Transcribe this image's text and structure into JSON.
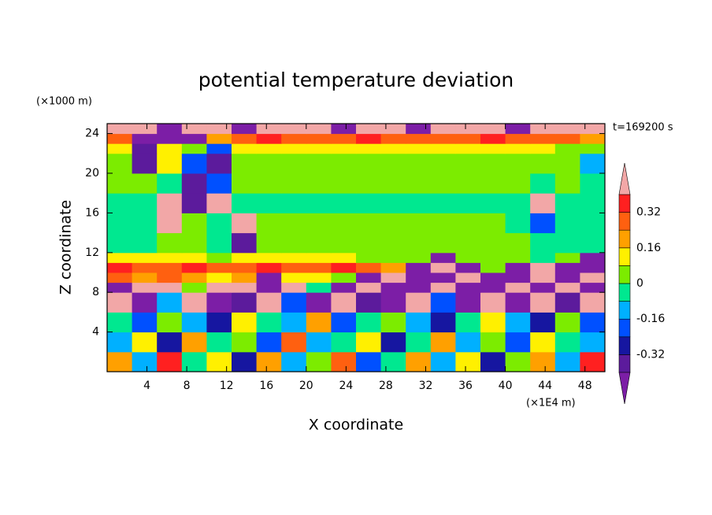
{
  "chart_data": {
    "type": "contour",
    "title": "potential temperature deviation",
    "x_label": "X coordinate",
    "y_label": "Z coordinate",
    "x_units": "(×1E4 m)",
    "y_units": "(×1000 m)",
    "annotation": "t=169200 s",
    "xlim": [
      0,
      50
    ],
    "ylim": [
      0,
      25
    ],
    "xticks": [
      4,
      8,
      12,
      16,
      20,
      24,
      28,
      32,
      36,
      40,
      44,
      48
    ],
    "yticks": [
      4,
      8,
      12,
      16,
      20,
      24
    ],
    "xbins": [
      0,
      2.5,
      5,
      7.5,
      10,
      12.5,
      15,
      17.5,
      20,
      22.5,
      25,
      27.5,
      30,
      32.5,
      35,
      37.5,
      40,
      42.5,
      45,
      47.5,
      50
    ],
    "ybins": [
      0,
      2,
      4,
      6,
      8,
      9,
      10,
      11,
      12,
      14,
      16,
      18,
      20,
      22,
      23,
      24,
      25
    ],
    "values": [
      [
        0.2,
        -0.12,
        0.36,
        -0.04,
        0.12,
        -0.28,
        0.2,
        -0.12,
        0.04,
        0.28,
        -0.2,
        -0.04,
        0.2,
        -0.12,
        0.12,
        -0.28,
        0.04,
        0.2,
        -0.12,
        0.36
      ],
      [
        -0.12,
        0.12,
        -0.28,
        0.2,
        -0.04,
        0.04,
        -0.2,
        0.28,
        -0.12,
        -0.04,
        0.12,
        -0.28,
        -0.04,
        0.2,
        -0.12,
        0.04,
        -0.2,
        0.12,
        -0.04,
        -0.12
      ],
      [
        -0.04,
        -0.2,
        0.04,
        -0.12,
        -0.28,
        0.12,
        -0.04,
        -0.12,
        0.2,
        -0.2,
        -0.04,
        0.04,
        -0.12,
        -0.28,
        -0.04,
        0.12,
        -0.12,
        -0.28,
        0.04,
        -0.2
      ],
      [
        0.45,
        -0.45,
        -0.12,
        0.45,
        -0.45,
        -0.36,
        0.45,
        -0.2,
        -0.45,
        0.45,
        -0.36,
        -0.45,
        0.45,
        -0.2,
        -0.45,
        0.45,
        -0.45,
        0.45,
        -0.36,
        0.45
      ],
      [
        -0.45,
        0.45,
        0.45,
        0.04,
        0.45,
        0.45,
        -0.45,
        0.45,
        -0.04,
        -0.45,
        0.45,
        -0.45,
        -0.45,
        0.45,
        -0.45,
        -0.45,
        0.45,
        -0.45,
        0.45,
        -0.45
      ],
      [
        0.28,
        0.2,
        0.28,
        0.2,
        0.12,
        0.2,
        -0.45,
        0.12,
        0.12,
        0.04,
        -0.45,
        0.45,
        -0.45,
        -0.45,
        0.45,
        -0.45,
        -0.45,
        0.45,
        -0.45,
        0.45
      ],
      [
        0.36,
        0.28,
        0.28,
        0.36,
        0.28,
        0.28,
        0.36,
        0.28,
        0.28,
        0.36,
        0.28,
        0.2,
        -0.45,
        0.45,
        -0.45,
        0.04,
        -0.45,
        0.45,
        -0.45,
        -0.45
      ],
      [
        0.12,
        0.12,
        0.12,
        0.12,
        0.04,
        0.12,
        0.12,
        0.12,
        0.12,
        0.12,
        0.04,
        0.04,
        0.04,
        -0.45,
        0.04,
        0.04,
        0.04,
        -0.04,
        0.04,
        -0.45
      ],
      [
        -0.04,
        -0.04,
        0.04,
        0.04,
        -0.04,
        -0.36,
        0.04,
        0.04,
        0.04,
        0.04,
        0.04,
        0.04,
        0.04,
        0.04,
        0.04,
        0.04,
        0.04,
        -0.04,
        -0.04,
        -0.04
      ],
      [
        -0.04,
        -0.04,
        0.45,
        0.04,
        -0.04,
        0.45,
        0.04,
        0.04,
        0.04,
        0.04,
        0.04,
        0.04,
        0.04,
        0.04,
        0.04,
        0.04,
        -0.04,
        -0.2,
        -0.04,
        -0.04
      ],
      [
        -0.04,
        -0.04,
        0.45,
        -0.36,
        0.45,
        -0.04,
        -0.04,
        -0.04,
        -0.04,
        -0.04,
        -0.04,
        -0.04,
        -0.04,
        -0.04,
        -0.04,
        -0.04,
        -0.04,
        0.45,
        -0.04,
        -0.04
      ],
      [
        0.04,
        0.04,
        -0.04,
        -0.36,
        -0.2,
        0.04,
        0.04,
        0.04,
        0.04,
        0.04,
        0.04,
        0.04,
        0.04,
        0.04,
        0.04,
        0.04,
        0.04,
        -0.04,
        0.04,
        -0.04
      ],
      [
        0.04,
        -0.36,
        0.12,
        -0.2,
        -0.36,
        0.04,
        0.04,
        0.04,
        0.04,
        0.04,
        0.04,
        0.04,
        0.04,
        0.04,
        0.04,
        0.04,
        0.04,
        0.04,
        0.04,
        -0.12
      ],
      [
        0.12,
        -0.36,
        0.12,
        0.04,
        -0.2,
        0.12,
        0.12,
        0.12,
        0.12,
        0.12,
        0.12,
        0.12,
        0.12,
        0.12,
        0.12,
        0.12,
        0.12,
        0.12,
        0.04,
        0.04
      ],
      [
        0.28,
        -0.45,
        -0.45,
        -0.45,
        0.2,
        0.28,
        0.36,
        0.28,
        0.28,
        0.28,
        0.36,
        0.28,
        0.28,
        0.28,
        0.28,
        0.36,
        0.28,
        0.28,
        0.28,
        0.2
      ],
      [
        0.45,
        0.45,
        -0.45,
        0.45,
        0.45,
        -0.45,
        0.45,
        0.45,
        0.45,
        -0.45,
        0.45,
        0.45,
        -0.45,
        0.45,
        0.45,
        0.45,
        -0.45,
        0.45,
        0.45,
        0.45
      ]
    ],
    "levels": [
      -0.4,
      -0.32,
      -0.24,
      -0.16,
      -0.08,
      0,
      0.08,
      0.16,
      0.24,
      0.32,
      0.4
    ],
    "under_color": "#7c1ea6",
    "over_color": "#f2a7a7",
    "colors": [
      "#5c1b9c",
      "#1616a0",
      "#0050ff",
      "#00b0ff",
      "#00e890",
      "#7cec00",
      "#fff000",
      "#ffa000",
      "#ff6010",
      "#ff2020"
    ],
    "colorbar_ticks": [
      0.32,
      0.16,
      0,
      -0.16,
      -0.32
    ]
  }
}
